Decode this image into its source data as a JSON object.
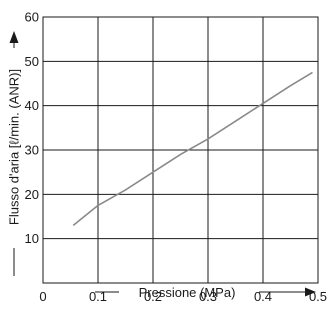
{
  "chart_data": {
    "type": "line",
    "title": "",
    "xlabel": "Pressione (MPa)",
    "ylabel": "Flusso d'aria [ℓ/min. (ANR)]",
    "xlim": [
      0,
      0.5
    ],
    "ylim": [
      0,
      60
    ],
    "x_ticks": [
      0.1,
      0.2,
      0.3,
      0.4,
      0.5
    ],
    "x_tick_labels": [
      "0.1",
      "0.2",
      "0.3",
      "0.4",
      "0.5"
    ],
    "y_ticks": [
      10,
      20,
      30,
      40,
      50,
      60
    ],
    "y_tick_labels": [
      "10",
      "20",
      "30",
      "40",
      "50",
      "60"
    ],
    "origin_label": "0",
    "grid": true,
    "series": [
      {
        "x": [
          0.055,
          0.1,
          0.15,
          0.2,
          0.25,
          0.3,
          0.35,
          0.4,
          0.45,
          0.49
        ],
        "y": [
          13,
          17.5,
          21,
          25,
          29,
          32.5,
          36.5,
          40.5,
          44.5,
          47.5
        ]
      }
    ],
    "colors": {
      "line": "#8a8a8a",
      "grid": "#1a1a1a",
      "text": "#1a1a1a"
    }
  }
}
